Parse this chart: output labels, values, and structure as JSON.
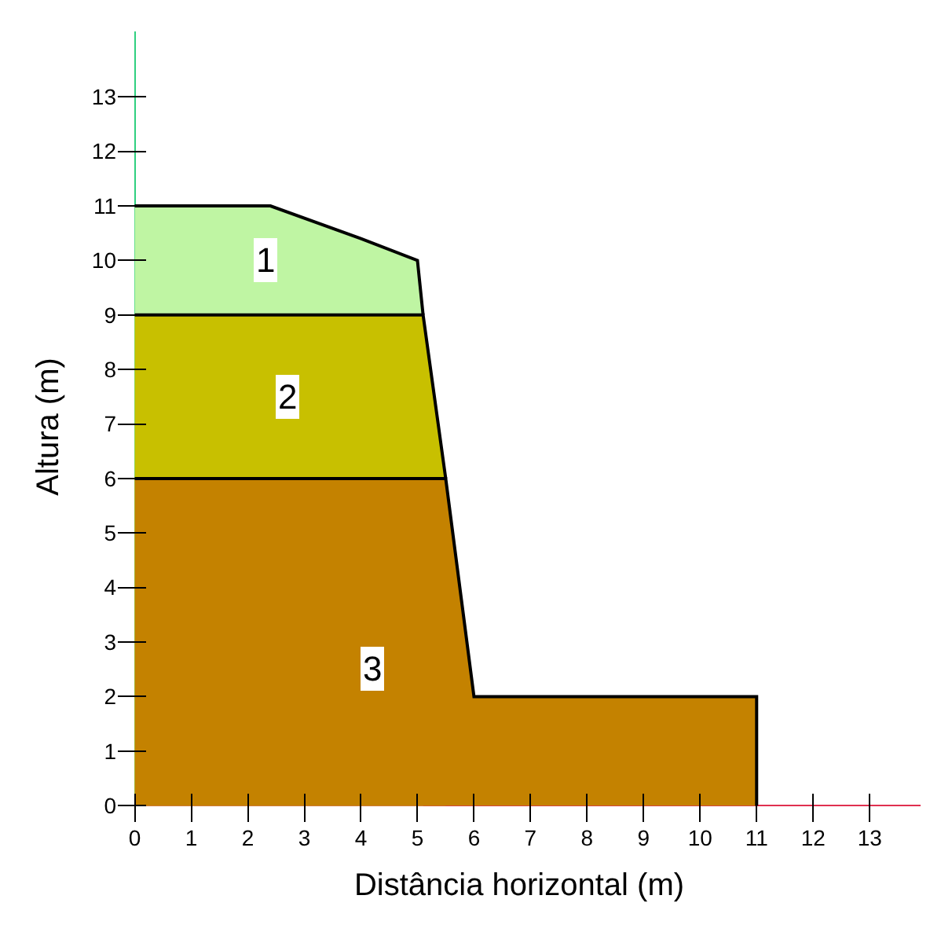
{
  "chart_data": {
    "type": "area",
    "xlabel": "Distância horizontal (m)",
    "ylabel": "Altura (m)",
    "series": [
      {
        "x": [
          0,
          2.4,
          4,
          5,
          5.1
        ],
        "values": [
          11,
          11,
          10.4,
          10,
          9
        ],
        "color": "#bff5a3"
      },
      {
        "x": [
          0,
          5.1,
          5.5
        ],
        "values": [
          9,
          9,
          6
        ],
        "color": "#c8c000"
      },
      {
        "x": [
          0,
          5.5,
          6,
          11,
          11
        ],
        "values": [
          6,
          6,
          2,
          2,
          0
        ],
        "color": "#c48200"
      }
    ],
    "annotations": [
      {
        "text": "1",
        "x": 2.3,
        "y": 10
      },
      {
        "text": "2",
        "x": 2.7,
        "y": 7.5
      },
      {
        "text": "3",
        "x": 4.2,
        "y": 2.5
      }
    ],
    "xlim": [
      -0.3,
      13.9
    ],
    "ylim": [
      -0.3,
      14.2
    ],
    "xticks": [
      0,
      1,
      2,
      3,
      4,
      5,
      6,
      7,
      8,
      9,
      10,
      11,
      12,
      13
    ],
    "yticks": [
      0,
      1,
      2,
      3,
      4,
      5,
      6,
      7,
      8,
      9,
      10,
      11,
      12,
      13
    ]
  }
}
